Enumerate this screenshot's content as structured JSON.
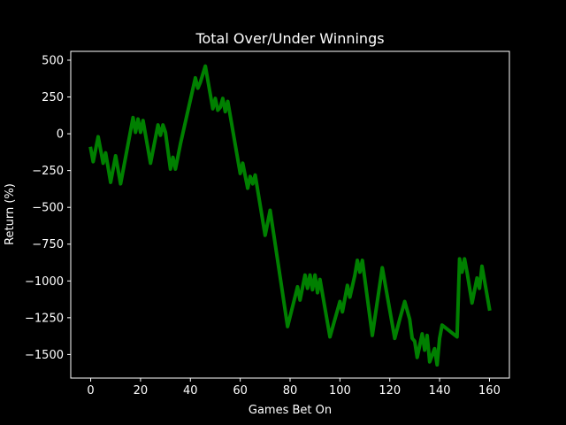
{
  "chart_data": {
    "type": "line",
    "title": "Total Over/Under Winnings",
    "xlabel": "Games Bet On",
    "ylabel": "Return (%)",
    "xlim": [
      -8,
      168
    ],
    "ylim": [
      -1660,
      560
    ],
    "x_ticks": [
      0,
      20,
      40,
      60,
      80,
      100,
      120,
      140,
      160
    ],
    "y_ticks": [
      500,
      250,
      0,
      -250,
      -500,
      -750,
      -1000,
      -1250,
      -1500
    ],
    "y_tick_labels": [
      "500",
      "250",
      "0",
      "−250",
      "−500",
      "−750",
      "−1000",
      "−1250",
      "−1500"
    ],
    "grid": false,
    "background": "#000000",
    "foreground": "#ffffff",
    "series": [
      {
        "color": "#008000",
        "x": [
          0,
          1,
          3,
          5,
          6,
          8,
          10,
          12,
          17,
          18,
          19,
          20,
          21,
          24,
          27,
          28,
          29,
          30,
          32,
          33,
          34,
          36,
          42,
          43,
          44,
          46,
          49,
          50,
          51,
          52,
          53,
          54,
          55,
          60,
          61,
          63,
          64,
          65,
          66,
          70,
          72,
          79,
          83,
          84,
          86,
          87,
          88,
          89,
          90,
          91,
          92,
          96,
          100,
          101,
          103,
          104,
          106,
          107,
          108,
          109,
          113,
          117,
          122,
          124,
          126,
          128,
          129,
          130,
          131,
          132,
          133,
          134,
          135,
          136,
          138,
          139,
          140,
          141,
          147,
          148,
          149,
          150,
          151,
          153,
          155,
          156,
          157,
          160
        ],
        "y": [
          -100,
          -190,
          -20,
          -200,
          -130,
          -330,
          -150,
          -340,
          110,
          10,
          100,
          10,
          90,
          -200,
          60,
          -10,
          60,
          10,
          -240,
          -160,
          -240,
          -70,
          380,
          310,
          350,
          460,
          170,
          240,
          160,
          180,
          240,
          150,
          220,
          -270,
          -200,
          -370,
          -290,
          -340,
          -280,
          -690,
          -520,
          -1310,
          -1040,
          -1130,
          -960,
          -1050,
          -960,
          -1060,
          -960,
          -1080,
          -990,
          -1380,
          -1140,
          -1210,
          -1030,
          -1110,
          -960,
          -860,
          -940,
          -860,
          -1370,
          -910,
          -1390,
          -1260,
          -1140,
          -1260,
          -1390,
          -1410,
          -1520,
          -1440,
          -1360,
          -1470,
          -1370,
          -1550,
          -1460,
          -1570,
          -1390,
          -1300,
          -1380,
          -850,
          -940,
          -850,
          -940,
          -1150,
          -980,
          -1050,
          -900,
          -1190
        ]
      }
    ]
  }
}
